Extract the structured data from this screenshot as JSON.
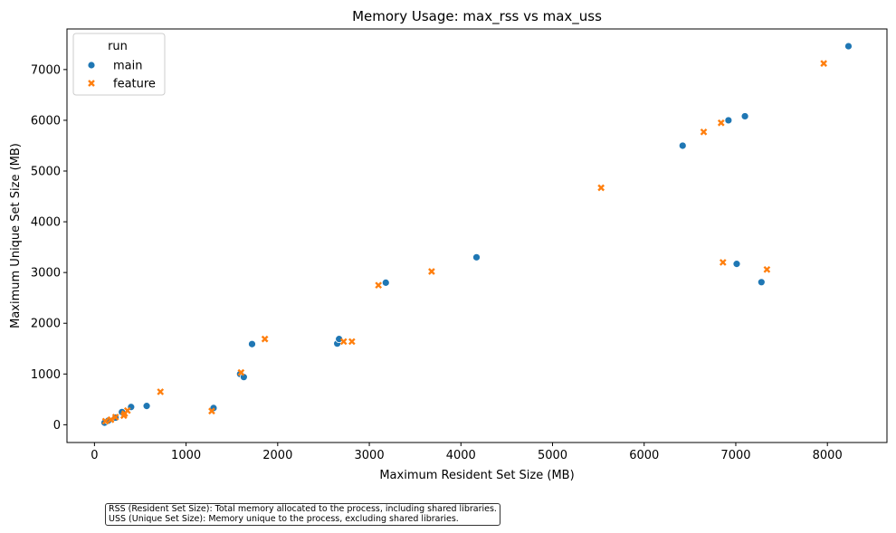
{
  "chart_data": {
    "type": "scatter",
    "title": "Memory Usage: max_rss vs max_uss",
    "xlabel": "Maximum Resident Set Size (MB)",
    "ylabel": "Maximum Unique Set Size (MB)",
    "xlim": [
      -300,
      8650
    ],
    "ylim": [
      -350,
      7800
    ],
    "xticks": [
      0,
      1000,
      2000,
      3000,
      4000,
      5000,
      6000,
      7000,
      8000
    ],
    "yticks": [
      0,
      1000,
      2000,
      3000,
      4000,
      5000,
      6000,
      7000
    ],
    "legend": {
      "title": "run",
      "placement": "top-left"
    },
    "grid": false,
    "series": [
      {
        "name": "main",
        "marker": "circle",
        "color": "#1f77b4",
        "points": [
          [
            110,
            40
          ],
          [
            150,
            80
          ],
          [
            230,
            140
          ],
          [
            300,
            250
          ],
          [
            400,
            350
          ],
          [
            570,
            370
          ],
          [
            1300,
            330
          ],
          [
            1590,
            1000
          ],
          [
            1630,
            940
          ],
          [
            1720,
            1590
          ],
          [
            2650,
            1600
          ],
          [
            2670,
            1690
          ],
          [
            3180,
            2800
          ],
          [
            4170,
            3300
          ],
          [
            6420,
            5500
          ],
          [
            6920,
            6000
          ],
          [
            7100,
            6080
          ],
          [
            8230,
            7460
          ],
          [
            7010,
            3170
          ],
          [
            7280,
            2810
          ]
        ]
      },
      {
        "name": "feature",
        "marker": "x",
        "color": "#ff7f0e",
        "points": [
          [
            120,
            70
          ],
          [
            180,
            100
          ],
          [
            230,
            150
          ],
          [
            320,
            180
          ],
          [
            330,
            220
          ],
          [
            360,
            280
          ],
          [
            720,
            650
          ],
          [
            1280,
            270
          ],
          [
            1600,
            1030
          ],
          [
            1860,
            1690
          ],
          [
            2720,
            1640
          ],
          [
            2810,
            1640
          ],
          [
            3100,
            2750
          ],
          [
            3680,
            3020
          ],
          [
            5530,
            4670
          ],
          [
            6650,
            5770
          ],
          [
            6840,
            5950
          ],
          [
            7960,
            7120
          ],
          [
            6860,
            3200
          ],
          [
            7340,
            3060
          ]
        ]
      }
    ]
  },
  "note": {
    "line1": "RSS (Resident Set Size): Total memory allocated to the process, including shared libraries.",
    "line2": "USS (Unique Set Size): Memory unique to the process, excluding shared libraries."
  }
}
